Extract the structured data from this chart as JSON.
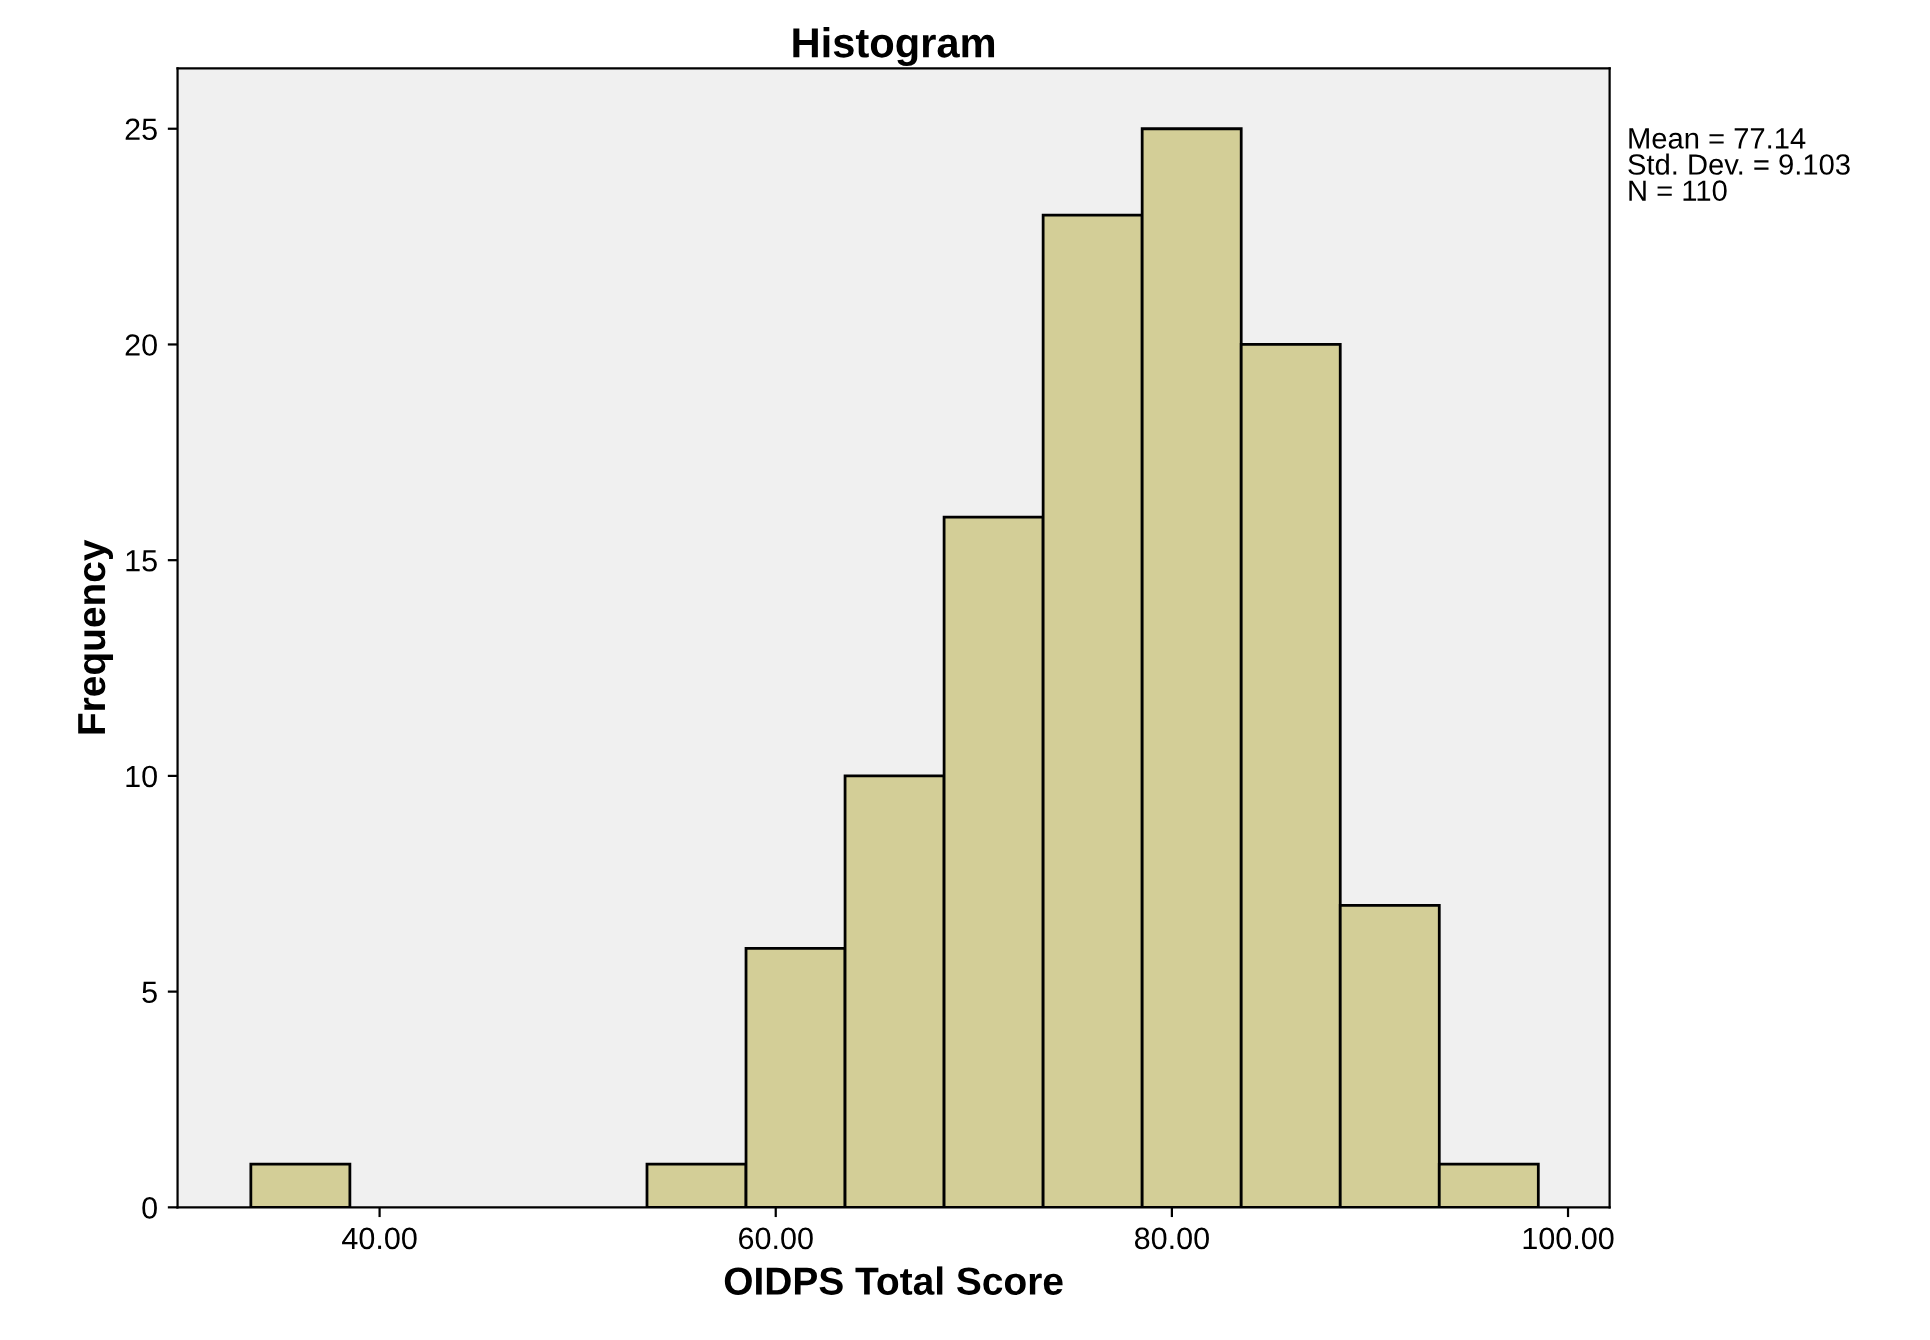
{
  "chart_data": {
    "type": "histogram",
    "title": "Histogram",
    "xlabel": "OIDPS Total Score",
    "ylabel": "Frequency",
    "bins": [
      33.5,
      38.5,
      43.5,
      48.5,
      53.5,
      58.5,
      63.5,
      68.5,
      73.5,
      78.5,
      83.5,
      88.5,
      93.5,
      98.5
    ],
    "values": [
      1,
      0,
      0,
      0,
      1,
      6,
      10,
      16,
      23,
      25,
      20,
      7,
      1
    ],
    "color": "#d3ce97",
    "xlim": [
      29.8,
      102.1
    ],
    "xticks": [
      {
        "value": 40,
        "label": "40.00"
      },
      {
        "value": 60,
        "label": "60.00"
      },
      {
        "value": 80,
        "label": "80.00"
      },
      {
        "value": 100,
        "label": "100.00"
      }
    ],
    "ylim": [
      0,
      26.4
    ],
    "yticks": [
      0,
      5,
      10,
      15,
      20,
      25
    ],
    "grid": false,
    "annotations": [
      "Mean = 77.14\nStd. Dev. = 9.103\nN = 110"
    ]
  }
}
